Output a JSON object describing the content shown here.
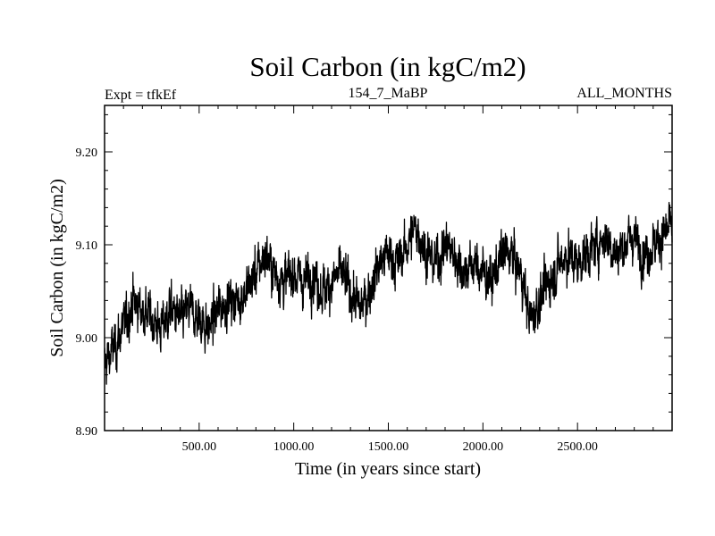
{
  "header": {
    "title": "Soil Carbon (in kgC/m2)",
    "left_label": "Expt = tfkEf",
    "center_label": "154_7_MaBP",
    "right_label": "ALL_MONTHS"
  },
  "chart_data": {
    "type": "line",
    "title": "Soil Carbon (in kgC/m2)",
    "xlabel": "Time (in years since start)",
    "ylabel": "Soil Carbon (in kgC/m2)",
    "xlim": [
      0,
      3000
    ],
    "ylim": [
      8.9,
      9.25
    ],
    "x_ticks": [
      500,
      1000,
      1500,
      2000,
      2500
    ],
    "x_tick_labels": [
      "500.00",
      "1000.00",
      "1500.00",
      "2000.00",
      "2500.00"
    ],
    "y_ticks": [
      8.9,
      9.0,
      9.1,
      9.2
    ],
    "y_tick_labels": [
      "8.90",
      "9.00",
      "9.10",
      "9.20"
    ],
    "grid": false,
    "line_color": "#000000",
    "series": [
      {
        "x": [
          0,
          50,
          100,
          150,
          200,
          250,
          300,
          350,
          400,
          450,
          500,
          550,
          600,
          650,
          700,
          750,
          800,
          850,
          900,
          950,
          1000,
          1050,
          1100,
          1150,
          1200,
          1250,
          1300,
          1350,
          1400,
          1450,
          1500,
          1550,
          1600,
          1650,
          1700,
          1750,
          1800,
          1850,
          1900,
          1950,
          2000,
          2050,
          2100,
          2150,
          2200,
          2250,
          2300,
          2350,
          2400,
          2450,
          2500,
          2550,
          2600,
          2650,
          2700,
          2750,
          2800,
          2850,
          2900,
          2950,
          3000
        ],
        "values": [
          8.97,
          8.99,
          9.01,
          9.04,
          9.03,
          9.02,
          9.01,
          9.03,
          9.02,
          9.03,
          9.02,
          9.01,
          9.03,
          9.04,
          9.04,
          9.05,
          9.07,
          9.09,
          9.07,
          9.06,
          9.07,
          9.06,
          9.07,
          9.05,
          9.06,
          9.07,
          9.05,
          9.03,
          9.05,
          9.08,
          9.09,
          9.08,
          9.1,
          9.12,
          9.09,
          9.08,
          9.1,
          9.09,
          9.07,
          9.08,
          9.07,
          9.06,
          9.09,
          9.09,
          9.07,
          9.02,
          9.04,
          9.06,
          9.08,
          9.09,
          9.08,
          9.09,
          9.1,
          9.11,
          9.09,
          9.1,
          9.11,
          9.09,
          9.1,
          9.11,
          9.12
        ]
      }
    ]
  }
}
